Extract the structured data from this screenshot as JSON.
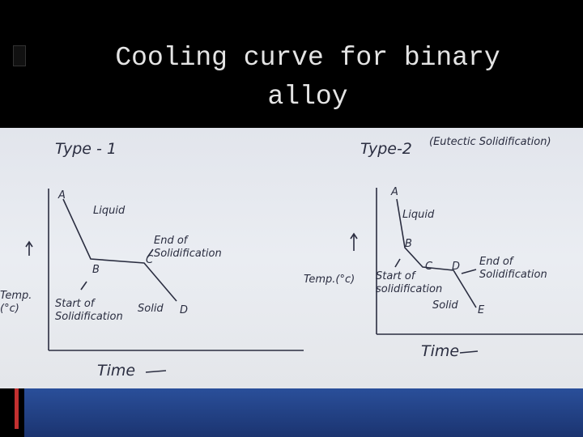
{
  "title": "Cooling curve for binary alloy",
  "diagrams": [
    {
      "heading": "Type - 1",
      "y_axis": "Temp. (°c)",
      "x_axis": "Time",
      "points": [
        "A",
        "B",
        "C",
        "D"
      ],
      "liquid": "Liquid",
      "solid": "Solid",
      "start": "Start of Solidification",
      "end": "End of Solidification"
    },
    {
      "heading": "Type-2",
      "subheading": "(Eutectic Solidification)",
      "y_axis": "Temp.(°c)",
      "x_axis": "Time",
      "points": [
        "A",
        "B",
        "C",
        "D",
        "E"
      ],
      "liquid": "Liquid",
      "solid": "Solid",
      "start": "Start of solidification",
      "end": "End of Solidification"
    }
  ]
}
